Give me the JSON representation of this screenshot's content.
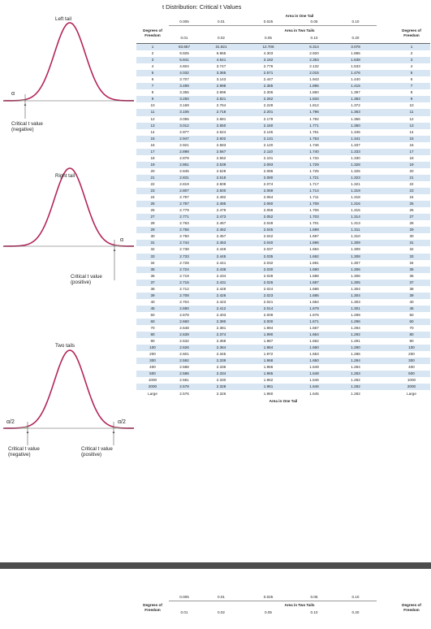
{
  "title": "t Distribution: Critical t Values",
  "header": {
    "one_tail_label": "Area in One Tail",
    "two_tail_label": "Area in Two Tails",
    "df_label_line1": "Degrees of",
    "df_label_line2": "Freedom",
    "one_tail": [
      "0.005",
      "0.01",
      "0.025",
      "0.05",
      "0.10"
    ],
    "two_tails": [
      "0.01",
      "0.02",
      "0.05",
      "0.10",
      "0.20"
    ]
  },
  "footer_label": "Area in One Tail",
  "panels": {
    "left_tail": {
      "title": "Left tail",
      "alpha": "α",
      "cv_line1": "Critical t value",
      "cv_line2": "(negative)"
    },
    "right_tail": {
      "title": "Right tail",
      "alpha": "α",
      "cv_line1": "Critical t value",
      "cv_line2": "(positive)"
    },
    "two_tails": {
      "title": "Two tails",
      "alpha_left": "α/2",
      "alpha_right": "α/2",
      "cv_left_line1": "Critical t value",
      "cv_left_line2": "(negative)",
      "cv_right_line1": "Critical t value",
      "cv_right_line2": "(positive)"
    }
  },
  "rows": [
    [
      "1",
      "63.657",
      "31.821",
      "12.706",
      "6.314",
      "3.078"
    ],
    [
      "2",
      "9.925",
      "6.965",
      "4.303",
      "2.920",
      "1.886"
    ],
    [
      "3",
      "5.841",
      "4.541",
      "3.182",
      "2.353",
      "1.638"
    ],
    [
      "4",
      "4.604",
      "3.747",
      "2.776",
      "2.132",
      "1.533"
    ],
    [
      "5",
      "4.032",
      "3.365",
      "2.571",
      "2.015",
      "1.476"
    ],
    [
      "6",
      "3.707",
      "3.143",
      "2.447",
      "1.943",
      "1.440"
    ],
    [
      "7",
      "3.499",
      "2.998",
      "2.365",
      "1.895",
      "1.415"
    ],
    [
      "8",
      "3.355",
      "2.896",
      "2.306",
      "1.860",
      "1.397"
    ],
    [
      "9",
      "3.250",
      "2.821",
      "2.262",
      "1.833",
      "1.383"
    ],
    [
      "10",
      "3.169",
      "2.764",
      "2.228",
      "1.812",
      "1.372"
    ],
    [
      "11",
      "3.106",
      "2.718",
      "2.201",
      "1.796",
      "1.363"
    ],
    [
      "12",
      "3.055",
      "2.681",
      "2.179",
      "1.782",
      "1.356"
    ],
    [
      "13",
      "3.012",
      "2.650",
      "2.160",
      "1.771",
      "1.350"
    ],
    [
      "14",
      "2.977",
      "2.624",
      "2.145",
      "1.761",
      "1.345"
    ],
    [
      "15",
      "2.947",
      "2.602",
      "2.131",
      "1.753",
      "1.341"
    ],
    [
      "16",
      "2.921",
      "2.583",
      "2.120",
      "1.746",
      "1.337"
    ],
    [
      "17",
      "2.898",
      "2.567",
      "2.110",
      "1.740",
      "1.333"
    ],
    [
      "18",
      "2.878",
      "2.552",
      "2.101",
      "1.734",
      "1.330"
    ],
    [
      "19",
      "2.861",
      "2.539",
      "2.093",
      "1.729",
      "1.328"
    ],
    [
      "20",
      "2.845",
      "2.528",
      "2.086",
      "1.725",
      "1.325"
    ],
    [
      "21",
      "2.831",
      "2.518",
      "2.080",
      "1.721",
      "1.323"
    ],
    [
      "22",
      "2.819",
      "2.508",
      "2.074",
      "1.717",
      "1.321"
    ],
    [
      "23",
      "2.807",
      "2.500",
      "2.069",
      "1.714",
      "1.319"
    ],
    [
      "24",
      "2.797",
      "2.492",
      "2.064",
      "1.711",
      "1.318"
    ],
    [
      "25",
      "2.787",
      "2.485",
      "2.060",
      "1.708",
      "1.316"
    ],
    [
      "26",
      "2.779",
      "2.479",
      "2.056",
      "1.706",
      "1.315"
    ],
    [
      "27",
      "2.771",
      "2.473",
      "2.052",
      "1.703",
      "1.314"
    ],
    [
      "28",
      "2.763",
      "2.467",
      "2.048",
      "1.701",
      "1.313"
    ],
    [
      "29",
      "2.756",
      "2.462",
      "2.045",
      "1.699",
      "1.311"
    ],
    [
      "30",
      "2.750",
      "2.457",
      "2.042",
      "1.697",
      "1.310"
    ],
    [
      "31",
      "2.744",
      "2.453",
      "2.040",
      "1.696",
      "1.309"
    ],
    [
      "32",
      "2.738",
      "2.449",
      "2.037",
      "1.694",
      "1.309"
    ],
    [
      "33",
      "2.733",
      "2.445",
      "2.035",
      "1.692",
      "1.308"
    ],
    [
      "34",
      "2.728",
      "2.441",
      "2.032",
      "1.691",
      "1.307"
    ],
    [
      "35",
      "2.724",
      "2.438",
      "2.030",
      "1.690",
      "1.306"
    ],
    [
      "36",
      "2.719",
      "2.434",
      "2.028",
      "1.688",
      "1.306"
    ],
    [
      "37",
      "2.715",
      "2.431",
      "2.026",
      "1.687",
      "1.305"
    ],
    [
      "38",
      "2.712",
      "2.429",
      "2.024",
      "1.686",
      "1.304"
    ],
    [
      "39",
      "2.708",
      "2.426",
      "2.023",
      "1.685",
      "1.304"
    ],
    [
      "40",
      "2.704",
      "2.423",
      "2.021",
      "1.684",
      "1.303"
    ],
    [
      "45",
      "2.690",
      "2.412",
      "2.014",
      "1.679",
      "1.301"
    ],
    [
      "50",
      "2.678",
      "2.403",
      "2.009",
      "1.676",
      "1.299"
    ],
    [
      "60",
      "2.660",
      "2.390",
      "2.000",
      "1.671",
      "1.296"
    ],
    [
      "70",
      "2.648",
      "2.381",
      "1.994",
      "1.667",
      "1.294"
    ],
    [
      "80",
      "2.639",
      "2.374",
      "1.990",
      "1.664",
      "1.292"
    ],
    [
      "90",
      "2.632",
      "2.368",
      "1.987",
      "1.662",
      "1.291"
    ],
    [
      "100",
      "2.626",
      "2.364",
      "1.984",
      "1.660",
      "1.290"
    ],
    [
      "200",
      "2.601",
      "2.345",
      "1.972",
      "1.653",
      "1.286"
    ],
    [
      "300",
      "2.592",
      "2.339",
      "1.968",
      "1.650",
      "1.284"
    ],
    [
      "400",
      "2.588",
      "2.336",
      "1.966",
      "1.649",
      "1.284"
    ],
    [
      "500",
      "2.586",
      "2.334",
      "1.965",
      "1.648",
      "1.283"
    ],
    [
      "1000",
      "2.581",
      "2.330",
      "1.962",
      "1.646",
      "1.282"
    ],
    [
      "2000",
      "2.578",
      "2.328",
      "1.961",
      "1.646",
      "1.282"
    ],
    [
      "Large",
      "2.576",
      "2.326",
      "1.960",
      "1.645",
      "1.282"
    ]
  ],
  "colors": {
    "curve": "#b3245a",
    "tail_fill": "#a9cfa2",
    "row_shade": "#d8e6f3",
    "dark_band": "#4d4d4d"
  }
}
